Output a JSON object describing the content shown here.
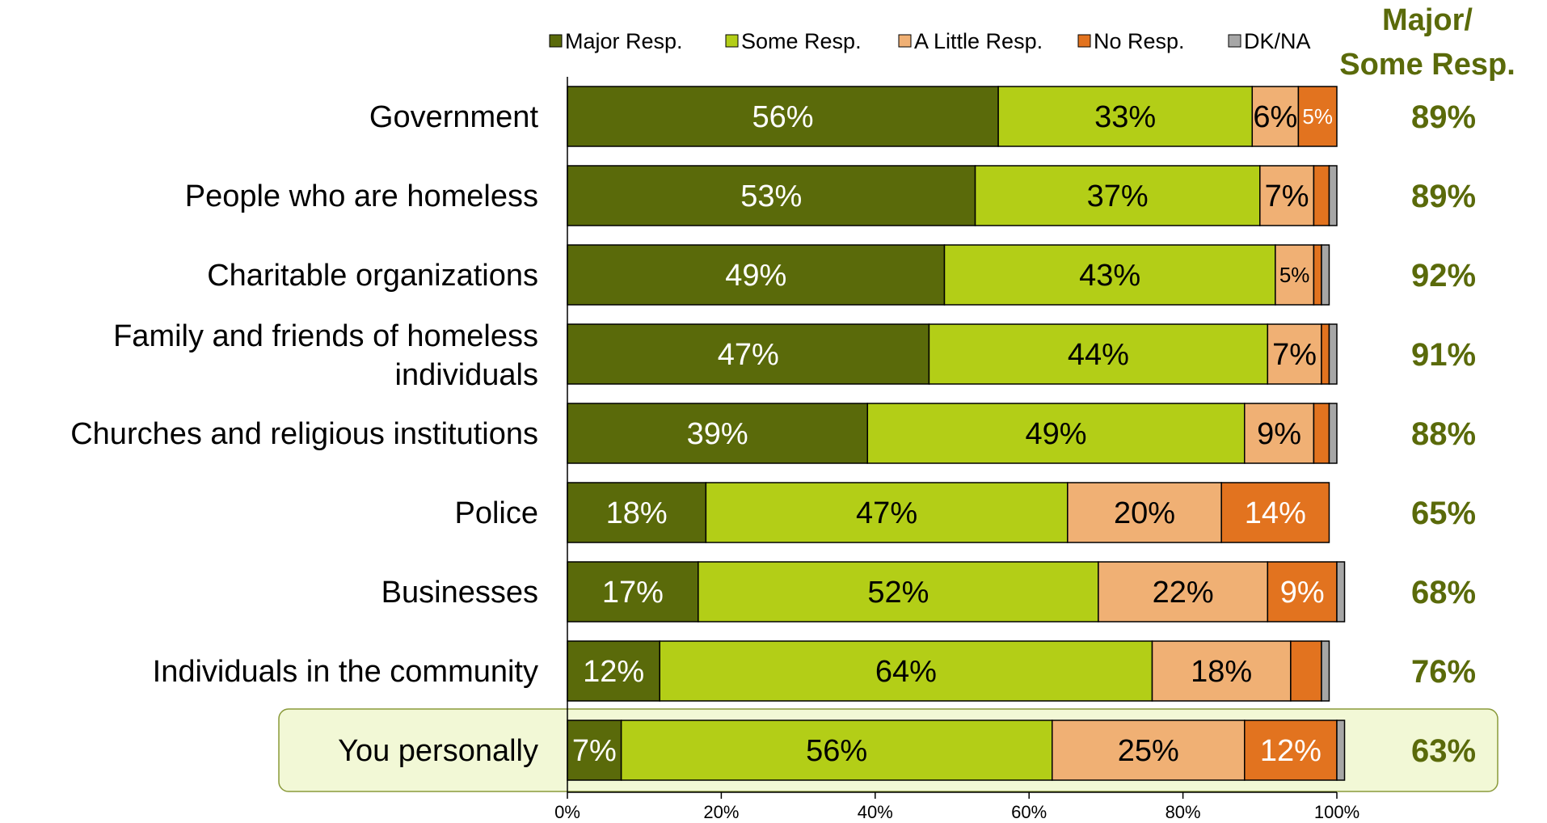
{
  "chart_data": {
    "type": "bar",
    "orientation": "horizontal",
    "stacked": true,
    "categories": [
      "Government",
      "People who are homeless",
      "Charitable organizations",
      "Family and friends of homeless individuals",
      "Churches and religious institutions",
      "Police",
      "Businesses",
      "Individuals in the community",
      "You personally"
    ],
    "series": [
      {
        "name": "Major Resp.",
        "color": "#5a6a0a",
        "label_color": "#ffffff",
        "values": [
          56,
          53,
          49,
          47,
          39,
          18,
          17,
          12,
          7
        ]
      },
      {
        "name": "Some Resp.",
        "color": "#b3ce17",
        "label_color": "#000000",
        "values": [
          33,
          37,
          43,
          44,
          49,
          47,
          52,
          64,
          56
        ]
      },
      {
        "name": "A Little Resp.",
        "color": "#f0b074",
        "label_color": "#000000",
        "values": [
          6,
          7,
          5,
          7,
          9,
          20,
          22,
          18,
          25
        ]
      },
      {
        "name": "No Resp.",
        "color": "#e2731f",
        "label_color": "#ffffff",
        "values": [
          5,
          2,
          1,
          1,
          2,
          14,
          9,
          4,
          12
        ]
      },
      {
        "name": "DK/NA",
        "color": "#a6a6a6",
        "label_color": "#000000",
        "values": [
          0,
          1,
          1,
          1,
          1,
          0,
          1,
          1,
          1
        ]
      }
    ],
    "labels_shown": [
      [
        "56%",
        "33%",
        "6%",
        "5%",
        ""
      ],
      [
        "53%",
        "37%",
        "7%",
        "",
        ""
      ],
      [
        "49%",
        "43%",
        "5%",
        "",
        ""
      ],
      [
        "47%",
        "44%",
        "7%",
        "",
        ""
      ],
      [
        "39%",
        "49%",
        "9%",
        "",
        ""
      ],
      [
        "18%",
        "47%",
        "20%",
        "14%",
        ""
      ],
      [
        "17%",
        "52%",
        "22%",
        "9%",
        ""
      ],
      [
        "12%",
        "64%",
        "18%",
        "",
        ""
      ],
      [
        "7%",
        "56%",
        "25%",
        "12%",
        ""
      ]
    ],
    "column_header": "Major/ Some Resp.",
    "major_some_totals": [
      "89%",
      "89%",
      "92%",
      "91%",
      "88%",
      "65%",
      "68%",
      "76%",
      "63%"
    ],
    "highlighted_category": "You personally",
    "highlight_color": "#f2f8d6",
    "x_ticks": [
      "0%",
      "20%",
      "40%",
      "60%",
      "80%",
      "100%"
    ],
    "xlim": [
      0,
      100
    ],
    "legend_position": "top",
    "grid": false
  }
}
